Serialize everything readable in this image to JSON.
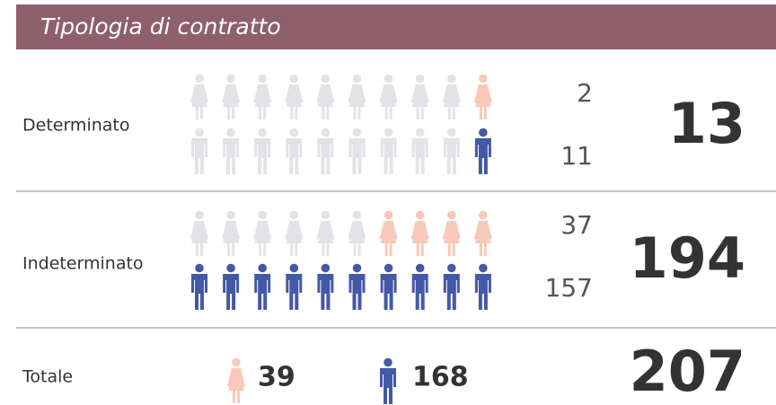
{
  "header": {
    "title": "Tipologia di contratto"
  },
  "rows": [
    {
      "label": "Determinato",
      "women": 2,
      "men": 11,
      "total": 13
    },
    {
      "label": "Indeterminato",
      "women": 37,
      "men": 157,
      "total": 194
    }
  ],
  "totals": {
    "label": "Totale",
    "women": 39,
    "men": 168,
    "total": 207
  }
}
